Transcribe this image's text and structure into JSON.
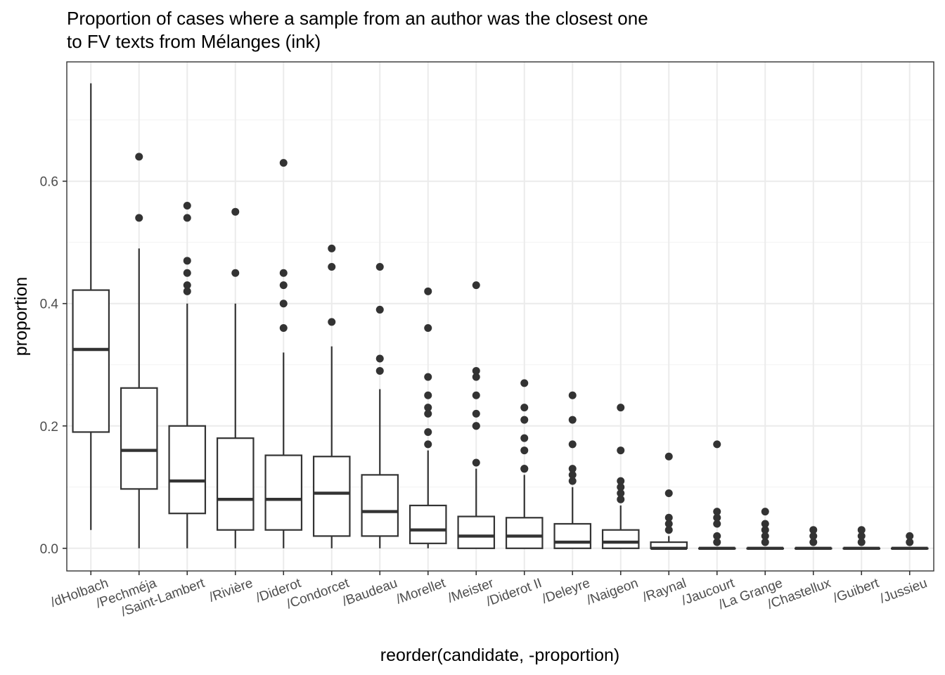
{
  "chart_data": {
    "type": "box",
    "title_lines": [
      "Proportion of cases where a sample from an author was the closest one",
      "to FV texts from Mélanges (ink)"
    ],
    "xlabel": "reorder(candidate, -proportion)",
    "ylabel": "proportion",
    "ylim": [
      -0.037,
      0.795
    ],
    "y_ticks": [
      0.0,
      0.2,
      0.4,
      0.6
    ],
    "y_tick_labels": [
      "0.0",
      "0.2",
      "0.4",
      "0.6"
    ],
    "grid": true,
    "series": [
      {
        "category": "/dHolbach",
        "whisker_low": 0.03,
        "q1": 0.19,
        "median": 0.325,
        "q3": 0.422,
        "whisker_high": 0.76,
        "outliers": []
      },
      {
        "category": "/Pechméja",
        "whisker_low": 0.0,
        "q1": 0.097,
        "median": 0.16,
        "q3": 0.262,
        "whisker_high": 0.49,
        "outliers": [
          0.54,
          0.64
        ]
      },
      {
        "category": "/Saint-Lambert",
        "whisker_low": 0.0,
        "q1": 0.057,
        "median": 0.11,
        "q3": 0.2,
        "whisker_high": 0.4,
        "outliers": [
          0.42,
          0.43,
          0.45,
          0.47,
          0.54,
          0.56
        ]
      },
      {
        "category": "/Rivière",
        "whisker_low": 0.0,
        "q1": 0.03,
        "median": 0.08,
        "q3": 0.18,
        "whisker_high": 0.4,
        "outliers": [
          0.45,
          0.55
        ]
      },
      {
        "category": "/Diderot",
        "whisker_low": 0.0,
        "q1": 0.03,
        "median": 0.08,
        "q3": 0.152,
        "whisker_high": 0.32,
        "outliers": [
          0.36,
          0.4,
          0.43,
          0.45,
          0.63
        ]
      },
      {
        "category": "/Condorcet",
        "whisker_low": 0.0,
        "q1": 0.02,
        "median": 0.09,
        "q3": 0.15,
        "whisker_high": 0.33,
        "outliers": [
          0.37,
          0.46,
          0.49
        ]
      },
      {
        "category": "/Baudeau",
        "whisker_low": 0.0,
        "q1": 0.02,
        "median": 0.06,
        "q3": 0.12,
        "whisker_high": 0.26,
        "outliers": [
          0.29,
          0.31,
          0.39,
          0.46
        ]
      },
      {
        "category": "/Morellet",
        "whisker_low": 0.0,
        "q1": 0.008,
        "median": 0.03,
        "q3": 0.07,
        "whisker_high": 0.16,
        "outliers": [
          0.17,
          0.19,
          0.22,
          0.23,
          0.25,
          0.28,
          0.36,
          0.42
        ]
      },
      {
        "category": "/Meister",
        "whisker_low": 0.0,
        "q1": 0.0,
        "median": 0.02,
        "q3": 0.052,
        "whisker_high": 0.13,
        "outliers": [
          0.14,
          0.2,
          0.2,
          0.22,
          0.25,
          0.28,
          0.29,
          0.43
        ]
      },
      {
        "category": "/Diderot II",
        "whisker_low": 0.0,
        "q1": 0.0,
        "median": 0.02,
        "q3": 0.05,
        "whisker_high": 0.12,
        "outliers": [
          0.13,
          0.13,
          0.16,
          0.18,
          0.21,
          0.23,
          0.27
        ]
      },
      {
        "category": "/Deleyre",
        "whisker_low": 0.0,
        "q1": 0.0,
        "median": 0.01,
        "q3": 0.04,
        "whisker_high": 0.1,
        "outliers": [
          0.11,
          0.12,
          0.13,
          0.17,
          0.21,
          0.25
        ]
      },
      {
        "category": "/Naigeon",
        "whisker_low": 0.0,
        "q1": 0.0,
        "median": 0.01,
        "q3": 0.03,
        "whisker_high": 0.07,
        "outliers": [
          0.08,
          0.09,
          0.1,
          0.11,
          0.16,
          0.23
        ]
      },
      {
        "category": "/Raynal",
        "whisker_low": 0.0,
        "q1": 0.0,
        "median": 0.0,
        "q3": 0.01,
        "whisker_high": 0.02,
        "outliers": [
          0.03,
          0.04,
          0.05,
          0.09,
          0.15
        ]
      },
      {
        "category": "/Jaucourt",
        "whisker_low": 0.0,
        "q1": 0.0,
        "median": 0.0,
        "q3": 0.0,
        "whisker_high": 0.0,
        "outliers": [
          0.01,
          0.02,
          0.04,
          0.05,
          0.06,
          0.17
        ]
      },
      {
        "category": "/La Grange",
        "whisker_low": 0.0,
        "q1": 0.0,
        "median": 0.0,
        "q3": 0.0,
        "whisker_high": 0.0,
        "outliers": [
          0.01,
          0.02,
          0.03,
          0.04,
          0.06
        ]
      },
      {
        "category": "/Chastellux",
        "whisker_low": 0.0,
        "q1": 0.0,
        "median": 0.0,
        "q3": 0.0,
        "whisker_high": 0.0,
        "outliers": [
          0.01,
          0.02,
          0.03
        ]
      },
      {
        "category": "/Guibert",
        "whisker_low": 0.0,
        "q1": 0.0,
        "median": 0.0,
        "q3": 0.0,
        "whisker_high": 0.0,
        "outliers": [
          0.01,
          0.02,
          0.03
        ]
      },
      {
        "category": "/Jussieu",
        "whisker_low": 0.0,
        "q1": 0.0,
        "median": 0.0,
        "q3": 0.0,
        "whisker_high": 0.0,
        "outliers": [
          0.01,
          0.02
        ]
      }
    ]
  },
  "colors": {
    "box_stroke": "#333333",
    "box_fill": "#ffffff",
    "grid": "#ebebeb",
    "tick_label": "#4d4d4d"
  }
}
